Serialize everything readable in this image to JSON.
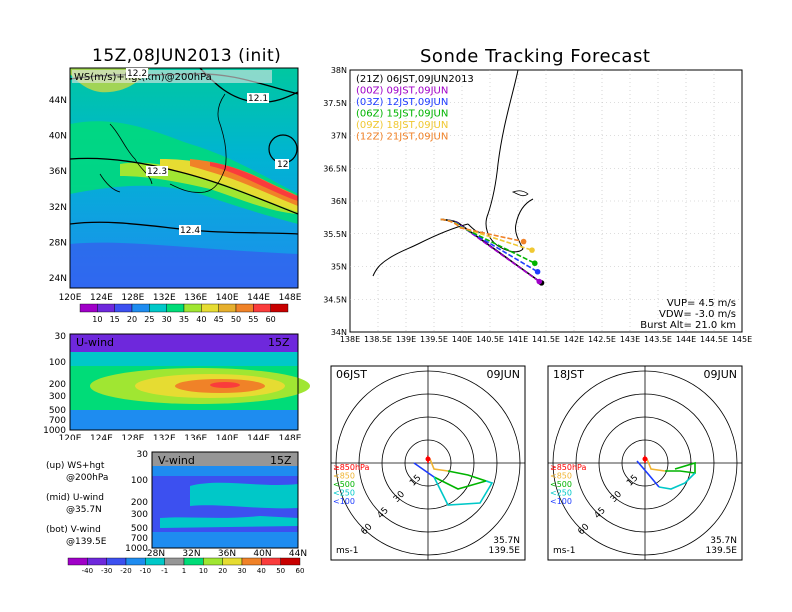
{
  "left_title": "15Z,08JUN2013 (init)",
  "right_title": "Sonde Tracking Forecast",
  "chart_data": [
    {
      "type": "heatmap",
      "panel": "upper-map",
      "label": "WS(m/s)+hgt(km)@200hPa",
      "x_ticks": [
        "120E",
        "124E",
        "128E",
        "132E",
        "136E",
        "140E",
        "144E",
        "148E"
      ],
      "y_ticks": [
        "24N",
        "28N",
        "32N",
        "36N",
        "40N",
        "44N"
      ],
      "contour_labels": [
        "12.2",
        "12.1",
        "12.3",
        "12",
        "12.4"
      ],
      "colorbar_ticks": [
        "10",
        "15",
        "20",
        "25",
        "30",
        "35",
        "40",
        "45",
        "50",
        "55",
        "60"
      ],
      "colorbar_colors": [
        "#a000c8",
        "#6e28dc",
        "#3c50f0",
        "#1e8cf0",
        "#00c8c8",
        "#00dc78",
        "#a0e632",
        "#e6dc32",
        "#e6af2d",
        "#f08228",
        "#fa3c3c",
        "#c80000"
      ]
    },
    {
      "type": "heatmap",
      "panel": "u-wind",
      "label": "U-wind",
      "time": "15Z",
      "x_ticks": [
        "120E",
        "124E",
        "128E",
        "132E",
        "136E",
        "140E",
        "144E",
        "148E"
      ],
      "y_ticks": [
        "30",
        "100",
        "200",
        "300",
        "500",
        "700",
        "1000"
      ]
    },
    {
      "type": "heatmap",
      "panel": "v-wind",
      "label": "V-wind",
      "time": "15Z",
      "x_ticks": [
        "28N",
        "32N",
        "36N",
        "40N",
        "44N"
      ],
      "y_ticks": [
        "30",
        "100",
        "200",
        "300",
        "500",
        "700",
        "1000"
      ],
      "colorbar_ticks": [
        "-40",
        "-30",
        "-20",
        "-10",
        "-1",
        "1",
        "10",
        "20",
        "30",
        "40",
        "50",
        "60"
      ],
      "colorbar_colors": [
        "#a000c8",
        "#6e28dc",
        "#3c50f0",
        "#1e8cf0",
        "#00c8c8",
        "#969696",
        "#00dc78",
        "#a0e632",
        "#e6dc32",
        "#f08228",
        "#fa3c3c",
        "#c80000"
      ]
    },
    {
      "type": "line",
      "panel": "sonde-tracks",
      "x_ticks": [
        "138E",
        "138.5E",
        "139E",
        "139.5E",
        "140E",
        "140.5E",
        "141E",
        "141.5E",
        "142E",
        "142.5E",
        "143E",
        "143.5E",
        "144E",
        "144.5E",
        "145E"
      ],
      "y_ticks": [
        "34N",
        "34.5N",
        "35N",
        "35.5N",
        "36N",
        "36.5N",
        "37N",
        "37.5N",
        "38N"
      ],
      "xlim": [
        138,
        145
      ],
      "ylim": [
        34,
        38
      ],
      "launch": {
        "x": 139.62,
        "y": 35.72
      },
      "series": [
        {
          "name": "(21Z) 06JST,09JUN2013",
          "color": "#000000",
          "end": {
            "x": 141.42,
            "y": 34.75
          }
        },
        {
          "name": "(00Z) 09JST,09JUN",
          "color": "#a000c8",
          "end": {
            "x": 141.38,
            "y": 34.77
          }
        },
        {
          "name": "(03Z) 12JST,09JUN",
          "color": "#1e3cff",
          "end": {
            "x": 141.35,
            "y": 34.92
          }
        },
        {
          "name": "(06Z) 15JST,09JUN",
          "color": "#00b400",
          "end": {
            "x": 141.3,
            "y": 35.05
          }
        },
        {
          "name": "(09Z) 18JST,09JUN",
          "color": "#f0c832",
          "end": {
            "x": 141.25,
            "y": 35.25
          }
        },
        {
          "name": "(12Z) 21JST,09JUN",
          "color": "#f08228",
          "end": {
            "x": 141.1,
            "y": 35.38
          }
        }
      ],
      "params": [
        "VUP= 4.5 m/s",
        "VDW= -3.0 m/s",
        "Burst Alt= 21.0 km"
      ]
    },
    {
      "type": "scatter",
      "panel": "hodograph-06JST",
      "time": "06JST",
      "date": "09JUN",
      "ring_labels": [
        "15",
        "30",
        "45",
        "60"
      ],
      "levels": [
        "≥850hPa",
        "<850",
        "<500",
        "<250",
        "<100"
      ],
      "level_colors": [
        "#ff0000",
        "#f0b432",
        "#00b400",
        "#00c8c8",
        "#1e3cff"
      ],
      "lat": "35.7N",
      "lon": "139.5E",
      "unit": "ms-1"
    },
    {
      "type": "scatter",
      "panel": "hodograph-18JST",
      "time": "18JST",
      "date": "09JUN",
      "ring_labels": [
        "15",
        "30",
        "45",
        "60"
      ],
      "levels": [
        "≥850hPa",
        "<850",
        "<500",
        "<250",
        "<100"
      ],
      "level_colors": [
        "#ff0000",
        "#f0b432",
        "#00b400",
        "#00c8c8",
        "#1e3cff"
      ],
      "lat": "35.7N",
      "lon": "139.5E",
      "unit": "ms-1"
    }
  ],
  "legend_text": [
    {
      "a": "(up) WS+hgt",
      "b": "@200hPa"
    },
    {
      "a": "(mid) U-wind",
      "b": "@35.7N"
    },
    {
      "a": "(bot) V-wind",
      "b": "@139.5E"
    }
  ]
}
